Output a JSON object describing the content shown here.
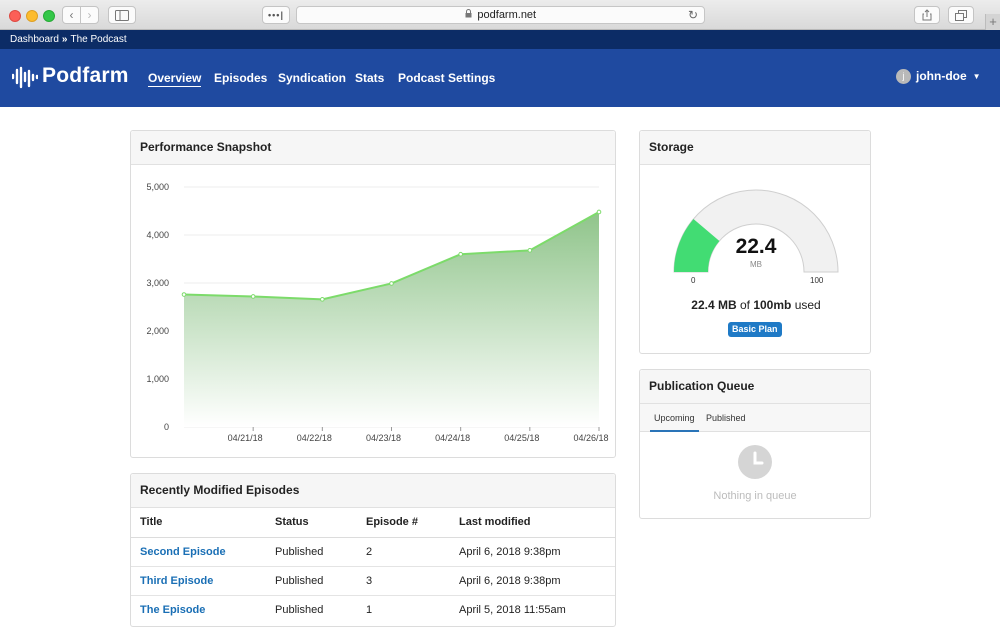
{
  "browser": {
    "url": "podfarm.net",
    "back_icon": "‹",
    "forward_icon": "›",
    "sidebar_icon": "▢",
    "dots_icon": "•••|",
    "share_icon": "⇪",
    "tabs_icon": "⧉",
    "new_tab_icon": "+",
    "reload_icon": "↻",
    "lock_icon": "🔒"
  },
  "breadcrumb": {
    "items": [
      "Dashboard",
      "The Podcast"
    ],
    "separator": "»"
  },
  "nav": {
    "brand": "Podfarm",
    "links": [
      "Overview",
      "Episodes",
      "Syndication",
      "Stats",
      "Podcast Settings"
    ],
    "active": "Overview",
    "user": "john-doe",
    "user_initial": "j",
    "caret": "▼"
  },
  "performance": {
    "title": "Performance Snapshot"
  },
  "chart_data": {
    "type": "area",
    "title": "",
    "xlabel": "",
    "ylabel": "",
    "ylim": [
      0,
      5000
    ],
    "yticks": [
      "0",
      "1,000",
      "2,000",
      "3,000",
      "4,000",
      "5,000"
    ],
    "xticks": [
      "04/21/18",
      "04/22/18",
      "04/23/18",
      "04/24/18",
      "04/25/18",
      "04/26/18"
    ],
    "x": [
      "04/20/18",
      "04/21/18",
      "04/22/18",
      "04/23/18",
      "04/24/18",
      "04/25/18",
      "04/26/18"
    ],
    "values": [
      2760,
      2720,
      2660,
      2990,
      3600,
      3680,
      4480
    ],
    "grid": true,
    "colors": {
      "line": "#7cdb6a",
      "fill_top": "#8fc48a",
      "fill_bottom": "#ffffff"
    }
  },
  "episodes": {
    "title": "Recently Modified Episodes",
    "columns": [
      "Title",
      "Status",
      "Episode #",
      "Last modified"
    ],
    "rows": [
      {
        "title": "Second Episode",
        "status": "Published",
        "number": "2",
        "modified": "April 6, 2018 9:38pm"
      },
      {
        "title": "Third Episode",
        "status": "Published",
        "number": "3",
        "modified": "April 6, 2018 9:38pm"
      },
      {
        "title": "The Episode",
        "status": "Published",
        "number": "1",
        "modified": "April 5, 2018 11:55am"
      }
    ]
  },
  "storage": {
    "title": "Storage",
    "value": "22.4",
    "unit": "MB",
    "min": "0",
    "max": "100",
    "used_fraction": 0.224,
    "used_text": "22.4 MB",
    "of_text": "of",
    "total_text": "100mb",
    "used_suffix": "used",
    "plan": "Basic Plan",
    "colors": {
      "used": "#42dc73",
      "track": "#f1f1f1",
      "plan_badge": "#1f7ac6"
    }
  },
  "queue": {
    "title": "Publication Queue",
    "tabs": [
      "Upcoming",
      "Published"
    ],
    "active_tab": "Upcoming",
    "empty_text": "Nothing in queue",
    "empty_icon": "clock-icon"
  },
  "theme": {
    "navbar": "#1f4aa0",
    "breadcrumb_bar": "#0c2c66",
    "link": "#1a6fb5"
  }
}
